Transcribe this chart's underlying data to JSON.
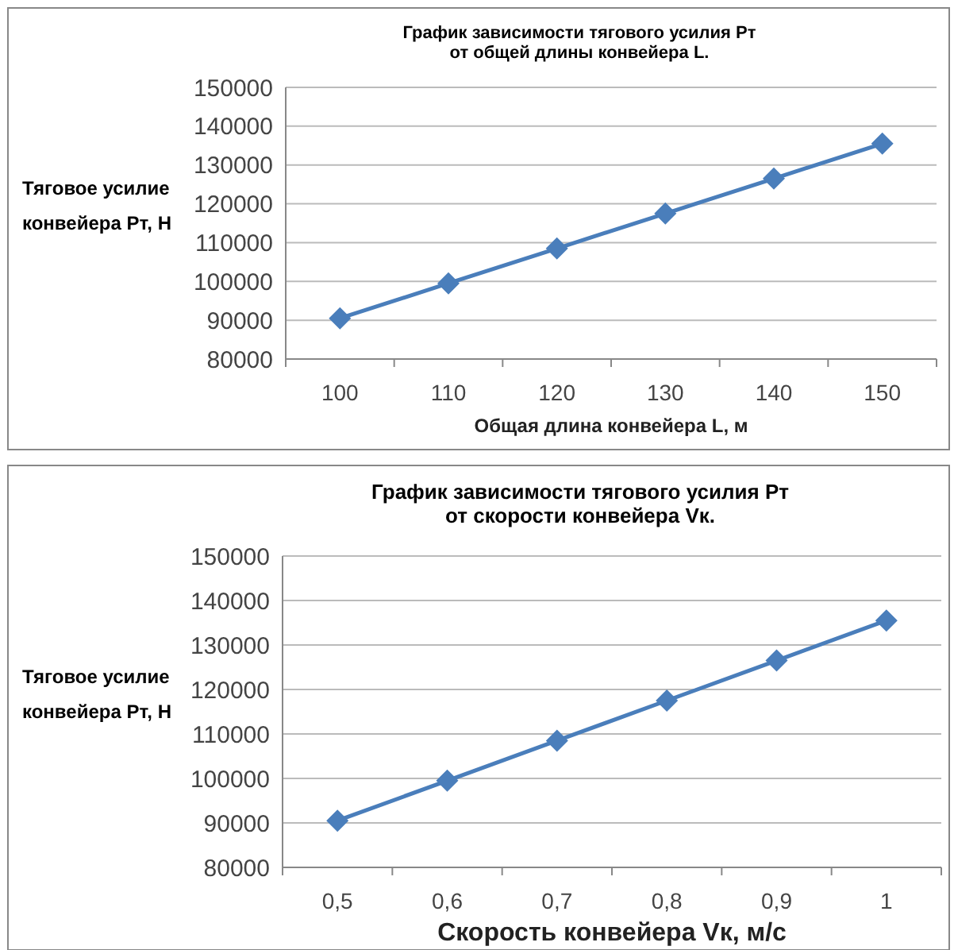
{
  "chart_data": [
    {
      "type": "line",
      "title": "График зависимости тягового усилия  Pт\nот общей длины конвейера L.",
      "xlabel": "Общая длина конвейера L, м",
      "ylabel": "Тяговое усилие\nконвейера Pт, Н",
      "categories": [
        "100",
        "110",
        "120",
        "130",
        "140",
        "150"
      ],
      "series": [
        {
          "color": "#4a7ebb",
          "values": [
            90500,
            99500,
            108500,
            117500,
            126500,
            135500
          ]
        }
      ],
      "ylim": [
        80000,
        150000
      ],
      "yticks": [
        80000,
        90000,
        100000,
        110000,
        120000,
        130000,
        140000,
        150000
      ],
      "grid": "y",
      "marker": "diamond",
      "line_style": "solid"
    },
    {
      "type": "line",
      "title": "График зависимости тягового усилия  Pт\nот скорости конвейера Vк.",
      "xlabel": "Скорость конвейера Vк, м/с",
      "ylabel": "Тяговое усилие\nконвейера Pт, Н",
      "categories": [
        "0,5",
        "0,6",
        "0,7",
        "0,8",
        "0,9",
        "1"
      ],
      "series": [
        {
          "color": "#4a7ebb",
          "values": [
            90500,
            99500,
            108500,
            117500,
            126500,
            135500
          ]
        }
      ],
      "ylim": [
        80000,
        150000
      ],
      "yticks": [
        80000,
        90000,
        100000,
        110000,
        120000,
        130000,
        140000,
        150000
      ],
      "grid": "y",
      "marker": "diamond",
      "line_style": "solid"
    }
  ]
}
